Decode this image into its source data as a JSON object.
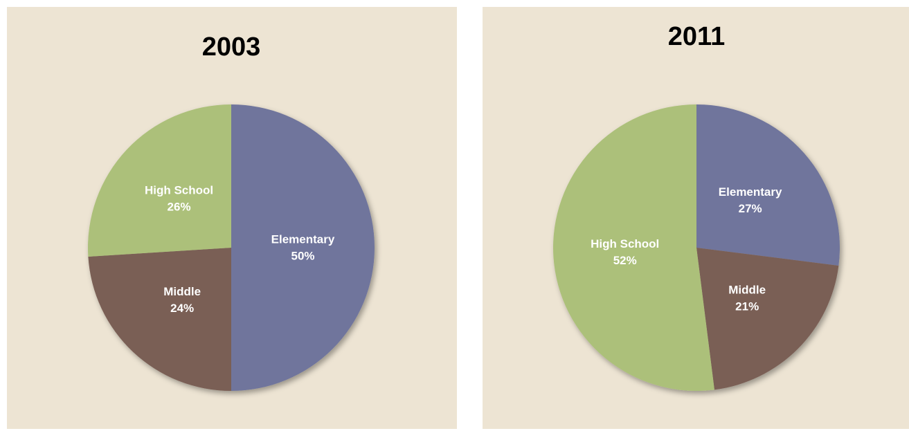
{
  "chart_data": [
    {
      "type": "pie",
      "title": "2003",
      "categories": [
        "Elementary",
        "Middle",
        "High School"
      ],
      "values": [
        50,
        24,
        26
      ],
      "value_labels": [
        "50%",
        "24%",
        "26%"
      ],
      "colors": [
        "#6f749c",
        "#7a5e54",
        "#acc07a"
      ]
    },
    {
      "type": "pie",
      "title": "2011",
      "categories": [
        "Elementary",
        "Middle",
        "High School"
      ],
      "values": [
        27,
        21,
        52
      ],
      "value_labels": [
        "27%",
        "21%",
        "52%"
      ],
      "colors": [
        "#6f749c",
        "#7a5e54",
        "#acc07a"
      ]
    }
  ]
}
